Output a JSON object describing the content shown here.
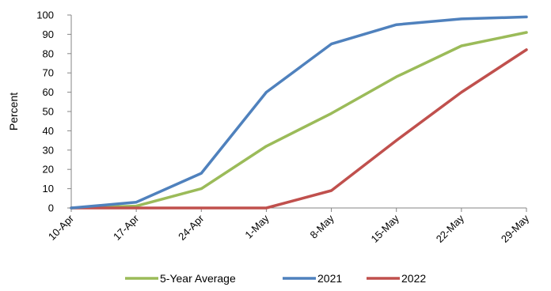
{
  "chart_data": {
    "type": "line",
    "title": "",
    "xlabel": "",
    "ylabel": "Percent",
    "ylim": [
      0,
      100
    ],
    "ytick_step": 10,
    "grid": "none",
    "legend_position": "bottom",
    "categories": [
      "10-Apr",
      "17-Apr",
      "24-Apr",
      "1-May",
      "8-May",
      "15-May",
      "22-May",
      "29-May"
    ],
    "series": [
      {
        "name": "5-Year Average",
        "color": "#9bbb59",
        "values": [
          0,
          1,
          10,
          32,
          49,
          68,
          84,
          91
        ]
      },
      {
        "name": "2021",
        "color": "#4f81bd",
        "values": [
          0,
          3,
          18,
          60,
          85,
          95,
          98,
          99
        ]
      },
      {
        "name": "2022",
        "color": "#c0504d",
        "values": [
          0,
          0,
          0,
          0,
          9,
          35,
          60,
          82
        ]
      }
    ]
  }
}
